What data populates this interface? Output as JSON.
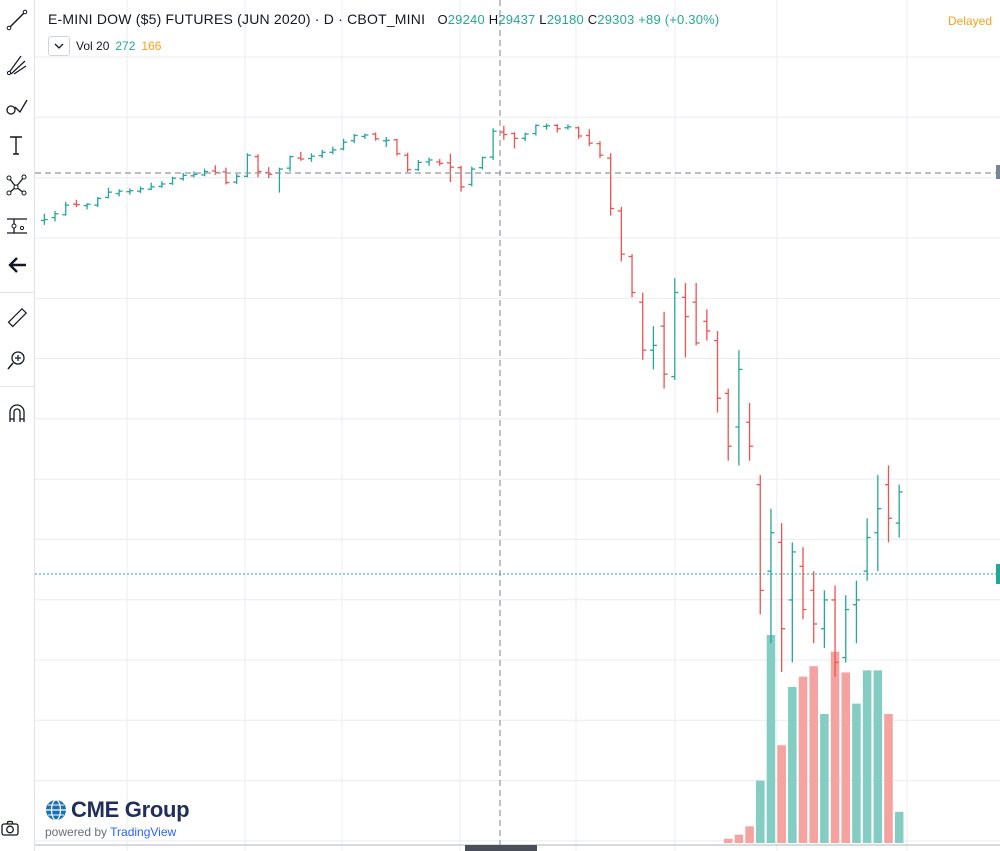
{
  "header": {
    "title": "E-MINI DOW ($5) FUTURES (JUN 2020)",
    "sep1": " · ",
    "interval": "D",
    "sep2": " · ",
    "exchange": "CBOT_MINI",
    "o_label": "O",
    "o_value": "29240",
    "h_label": "H",
    "h_value": "29437",
    "l_label": "L",
    "l_value": "29180",
    "c_label": "C",
    "c_value": "29303",
    "change": "+89 (+0.30%)",
    "status": "Delayed"
  },
  "volume_legend": {
    "label": "Vol 20",
    "value_up": "272",
    "value_down": "166"
  },
  "branding": {
    "name": "CME Group",
    "powered_prefix": "powered by ",
    "powered_name": "TradingView"
  },
  "toolbar": {
    "icons": [
      "trend-line-icon",
      "fib-icon",
      "brush-icon",
      "text-icon",
      "pattern-icon",
      "measure-icon",
      "back-icon",
      "ruler-icon",
      "zoom-in-icon",
      "magnet-icon"
    ]
  },
  "colors": {
    "up": "#26a69a",
    "down": "#ef5350",
    "up_volume": "#84cdc3",
    "down_volume": "#f5a3a1",
    "grid": "#e9ecf1",
    "crosshair": "#9598a1",
    "last_price_line": "#26a69a"
  },
  "chart_data": {
    "type": "ohlc-bar",
    "symbol": "E-MINI DOW ($5) FUTURES (JUN 2020)",
    "price_range_approx": [
      18100,
      30300
    ],
    "bars": [
      [
        27500,
        27640,
        27410,
        27520
      ],
      [
        27560,
        27700,
        27480,
        27640
      ],
      [
        27620,
        27890,
        27600,
        27820
      ],
      [
        27840,
        27930,
        27780,
        27830
      ],
      [
        27810,
        27860,
        27730,
        27840
      ],
      [
        27820,
        27990,
        27780,
        27960
      ],
      [
        27980,
        28180,
        27960,
        28090
      ],
      [
        28060,
        28150,
        28000,
        28110
      ],
      [
        28100,
        28170,
        28040,
        28120
      ],
      [
        28110,
        28210,
        28070,
        28160
      ],
      [
        28150,
        28290,
        28130,
        28200
      ],
      [
        28210,
        28320,
        28180,
        28260
      ],
      [
        28270,
        28410,
        28240,
        28380
      ],
      [
        28370,
        28490,
        28330,
        28440
      ],
      [
        28430,
        28520,
        28400,
        28460
      ],
      [
        28450,
        28580,
        28420,
        28520
      ],
      [
        28530,
        28650,
        28450,
        28500
      ],
      [
        28510,
        28600,
        28250,
        28290
      ],
      [
        28300,
        28470,
        28260,
        28420
      ],
      [
        28420,
        28900,
        28400,
        28860
      ],
      [
        28830,
        28880,
        28400,
        28520
      ],
      [
        28500,
        28610,
        28380,
        28460
      ],
      [
        28490,
        28600,
        28080,
        28570
      ],
      [
        28590,
        28850,
        28520,
        28830
      ],
      [
        28800,
        28930,
        28740,
        28780
      ],
      [
        28790,
        28900,
        28720,
        28840
      ],
      [
        28850,
        28970,
        28800,
        28920
      ],
      [
        28920,
        29040,
        28880,
        28970
      ],
      [
        28990,
        29200,
        28960,
        29130
      ],
      [
        29160,
        29300,
        29110,
        29270
      ],
      [
        29250,
        29310,
        29200,
        29280
      ],
      [
        29300,
        29330,
        29160,
        29200
      ],
      [
        29160,
        29240,
        29030,
        29170
      ],
      [
        29180,
        29200,
        28850,
        28890
      ],
      [
        28860,
        28910,
        28510,
        28560
      ],
      [
        28560,
        28760,
        28530,
        28710
      ],
      [
        28720,
        28810,
        28640,
        28760
      ],
      [
        28720,
        28780,
        28640,
        28690
      ],
      [
        28700,
        28890,
        28300,
        28610
      ],
      [
        28600,
        28640,
        28100,
        28200
      ],
      [
        28250,
        28620,
        28210,
        28570
      ],
      [
        28600,
        28830,
        28560,
        28810
      ],
      [
        28820,
        29420,
        28760,
        29360
      ],
      [
        29340,
        29470,
        29180,
        29290
      ],
      [
        29310,
        29340,
        29000,
        29210
      ],
      [
        29210,
        29330,
        29150,
        29300
      ],
      [
        29310,
        29500,
        29270,
        29480
      ],
      [
        29460,
        29520,
        29390,
        29470
      ],
      [
        29480,
        29510,
        29330,
        29410
      ],
      [
        29430,
        29500,
        29390,
        29450
      ],
      [
        29430,
        29460,
        29200,
        29260
      ],
      [
        29270,
        29400,
        29050,
        29110
      ],
      [
        29100,
        29150,
        28800,
        28860
      ],
      [
        28800,
        28900,
        27600,
        27750
      ],
      [
        27700,
        27780,
        26650,
        26800
      ],
      [
        26750,
        26800,
        25900,
        26000
      ],
      [
        25800,
        26000,
        24600,
        24800
      ],
      [
        24800,
        25300,
        24400,
        24900
      ],
      [
        25300,
        25600,
        24000,
        24300
      ],
      [
        24250,
        26300,
        24180,
        26000
      ],
      [
        25900,
        26200,
        24650,
        25500
      ],
      [
        25800,
        26200,
        24900,
        24950
      ],
      [
        25400,
        25650,
        25000,
        25200
      ],
      [
        25000,
        25200,
        23500,
        23800
      ],
      [
        23900,
        24000,
        22500,
        22800
      ],
      [
        23200,
        24800,
        22400,
        24400
      ],
      [
        23300,
        23700,
        22500,
        22800
      ],
      [
        22000,
        22200,
        19300,
        19800
      ],
      [
        20200,
        21500,
        18700,
        21000
      ],
      [
        20800,
        21200,
        18100,
        19000
      ],
      [
        19600,
        20800,
        18300,
        20600
      ],
      [
        20300,
        20700,
        19200,
        19400
      ],
      [
        19800,
        20200,
        18700,
        19100
      ],
      [
        19000,
        19800,
        18600,
        19600
      ],
      [
        19600,
        19900,
        18000,
        18300
      ],
      [
        18400,
        19700,
        18300,
        19400
      ],
      [
        19500,
        20000,
        18700,
        19600
      ],
      [
        20200,
        21300,
        20000,
        20900
      ],
      [
        21000,
        22200,
        20200,
        21500
      ],
      [
        22000,
        22400,
        20800,
        21300
      ],
      [
        21200,
        22000,
        20900,
        21850
      ]
    ],
    "volume": [
      {
        "v": 0.0,
        "up": true
      },
      {
        "v": 0.0,
        "up": true
      },
      {
        "v": 0.0,
        "up": true
      },
      {
        "v": 0.0,
        "up": true
      },
      {
        "v": 0.0,
        "up": true
      },
      {
        "v": 0.0,
        "up": true
      },
      {
        "v": 0.0,
        "up": true
      },
      {
        "v": 0.0,
        "up": true
      },
      {
        "v": 0.0,
        "up": true
      },
      {
        "v": 0.0,
        "up": true
      },
      {
        "v": 0.0,
        "up": true
      },
      {
        "v": 0.0,
        "up": true
      },
      {
        "v": 0.0,
        "up": true
      },
      {
        "v": 0.0,
        "up": true
      },
      {
        "v": 0.0,
        "up": true
      },
      {
        "v": 0.0,
        "up": true
      },
      {
        "v": 0.0,
        "up": true
      },
      {
        "v": 0.0,
        "up": true
      },
      {
        "v": 0.0,
        "up": true
      },
      {
        "v": 0.0,
        "up": true
      },
      {
        "v": 0.0,
        "up": true
      },
      {
        "v": 0.0,
        "up": true
      },
      {
        "v": 0.0,
        "up": true
      },
      {
        "v": 0.0,
        "up": true
      },
      {
        "v": 0.0,
        "up": true
      },
      {
        "v": 0.0,
        "up": true
      },
      {
        "v": 0.0,
        "up": true
      },
      {
        "v": 0.0,
        "up": true
      },
      {
        "v": 0.0,
        "up": true
      },
      {
        "v": 0.0,
        "up": true
      },
      {
        "v": 0.0,
        "up": true
      },
      {
        "v": 0.0,
        "up": true
      },
      {
        "v": 0.0,
        "up": true
      },
      {
        "v": 0.0,
        "up": true
      },
      {
        "v": 0.0,
        "up": true
      },
      {
        "v": 0.0,
        "up": true
      },
      {
        "v": 0.0,
        "up": true
      },
      {
        "v": 0.0,
        "up": true
      },
      {
        "v": 0.0,
        "up": true
      },
      {
        "v": 0.0,
        "up": true
      },
      {
        "v": 0.0,
        "up": true
      },
      {
        "v": 0.0,
        "up": true
      },
      {
        "v": 0.0,
        "up": true
      },
      {
        "v": 0.0,
        "up": true
      },
      {
        "v": 0.0,
        "up": true
      },
      {
        "v": 0.0,
        "up": true
      },
      {
        "v": 0.0,
        "up": true
      },
      {
        "v": 0.0,
        "up": true
      },
      {
        "v": 0.0,
        "up": true
      },
      {
        "v": 0.0,
        "up": true
      },
      {
        "v": 0.0,
        "up": true
      },
      {
        "v": 0.0,
        "up": true
      },
      {
        "v": 0.0,
        "up": true
      },
      {
        "v": 0.0,
        "up": true
      },
      {
        "v": 0.0,
        "up": true
      },
      {
        "v": 0.0,
        "up": true
      },
      {
        "v": 0.0,
        "up": true
      },
      {
        "v": 0.0,
        "up": true
      },
      {
        "v": 0.0,
        "up": true
      },
      {
        "v": 0.0,
        "up": true
      },
      {
        "v": 0.0,
        "up": true
      },
      {
        "v": 0.0,
        "up": true
      },
      {
        "v": 0.0,
        "up": true
      },
      {
        "v": 0.0,
        "up": true
      },
      {
        "v": 0.02,
        "up": false
      },
      {
        "v": 0.04,
        "up": false
      },
      {
        "v": 0.08,
        "up": false
      },
      {
        "v": 0.3,
        "up": true
      },
      {
        "v": 1.0,
        "up": true
      },
      {
        "v": 0.47,
        "up": false
      },
      {
        "v": 0.75,
        "up": true
      },
      {
        "v": 0.8,
        "up": false
      },
      {
        "v": 0.85,
        "up": false
      },
      {
        "v": 0.62,
        "up": true
      },
      {
        "v": 0.92,
        "up": false
      },
      {
        "v": 0.82,
        "up": false
      },
      {
        "v": 0.67,
        "up": true
      },
      {
        "v": 0.83,
        "up": true
      },
      {
        "v": 0.83,
        "up": true
      },
      {
        "v": 0.62,
        "up": false
      },
      {
        "v": 0.15,
        "up": true
      }
    ]
  }
}
